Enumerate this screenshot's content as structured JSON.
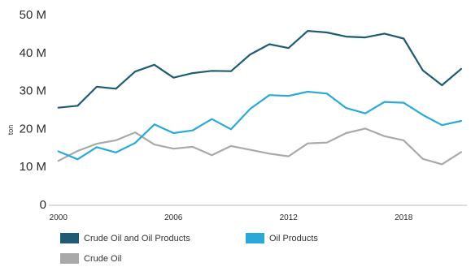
{
  "chart_data": {
    "type": "line",
    "ylabel": "ton",
    "xlabel": "",
    "ylim": [
      0,
      50
    ],
    "xlim": [
      1999.5,
      2021.3
    ],
    "yticks": [
      {
        "value": 0,
        "label": "0"
      },
      {
        "value": 10,
        "label": "10 M"
      },
      {
        "value": 20,
        "label": "20 M"
      },
      {
        "value": 30,
        "label": "30 M"
      },
      {
        "value": 40,
        "label": "40 M"
      },
      {
        "value": 50,
        "label": "50 M"
      }
    ],
    "xticks": [
      {
        "value": 2000,
        "label": "2000"
      },
      {
        "value": 2006,
        "label": "2006"
      },
      {
        "value": 2012,
        "label": "2012"
      },
      {
        "value": 2018,
        "label": "2018"
      }
    ],
    "x": [
      2000,
      2001,
      2002,
      2003,
      2004,
      2005,
      2006,
      2007,
      2008,
      2009,
      2010,
      2011,
      2012,
      2013,
      2014,
      2015,
      2016,
      2017,
      2018,
      2019,
      2020,
      2021
    ],
    "series": [
      {
        "name": "Crude Oil and Oil Products",
        "color": "#1f5b73",
        "values": [
          25.5,
          26.0,
          31.0,
          30.5,
          35.0,
          36.8,
          33.4,
          34.6,
          35.2,
          35.1,
          39.5,
          42.2,
          41.2,
          45.7,
          45.3,
          44.2,
          44.0,
          45.0,
          43.7,
          35.3,
          31.4,
          35.7
        ]
      },
      {
        "name": "Oil Products",
        "color": "#2aa9d9",
        "values": [
          14.0,
          11.9,
          15.1,
          13.7,
          16.2,
          21.1,
          18.8,
          19.5,
          22.5,
          19.8,
          25.2,
          28.8,
          28.6,
          29.7,
          29.2,
          25.4,
          24.0,
          27.0,
          26.8,
          23.6,
          20.9,
          22.0
        ]
      },
      {
        "name": "Crude Oil",
        "color": "#a9a9a9",
        "values": [
          11.5,
          14.1,
          16.0,
          16.9,
          19.0,
          15.8,
          14.7,
          15.2,
          13.0,
          15.4,
          14.4,
          13.4,
          12.7,
          16.1,
          16.3,
          18.8,
          20.0,
          18.0,
          16.9,
          12.0,
          10.6,
          13.8
        ]
      }
    ]
  }
}
